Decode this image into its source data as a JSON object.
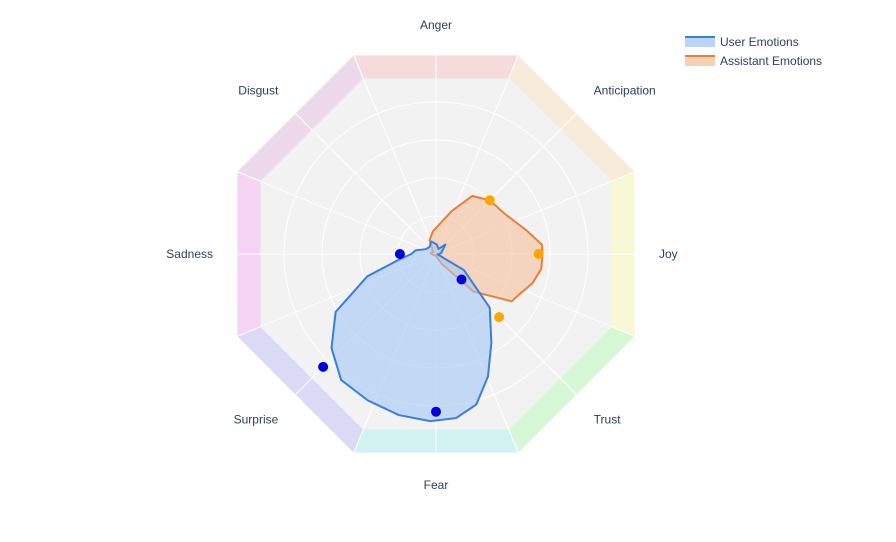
{
  "chart_data": {
    "type": "radar",
    "title": "",
    "axes": [
      "Joy",
      "Trust",
      "Fear",
      "Surprise",
      "Sadness",
      "Disgust",
      "Anger",
      "Anticipation"
    ],
    "axis_colors": [
      "#f5f5c8",
      "#c8f5c8",
      "#c3eeee",
      "#cfcdf2",
      "#f3c6f3",
      "#e6cce6",
      "#f3cfd2",
      "#f4e4cc"
    ],
    "radial_range": [
      0,
      1
    ],
    "radial_ticks": [
      0.2,
      0.4,
      0.6,
      0.8
    ],
    "series": [
      {
        "name": "User Emotions",
        "line_color": "#3a7fd8",
        "fill_color": "#a4c6f5",
        "marker_color": "#0000dd",
        "markers": [
          {
            "axis": "Trust",
            "value": 0.19
          },
          {
            "axis": "Fear",
            "value": 0.83
          },
          {
            "axis": "Surprise",
            "value": 0.84
          },
          {
            "axis": "Sadness",
            "value": 0.19
          }
        ],
        "outline": [
          [
            0,
            0.02
          ],
          [
            16,
            0.01
          ],
          [
            30,
            0.17
          ],
          [
            45,
            0.4
          ],
          [
            58,
            0.55
          ],
          [
            67,
            0.7
          ],
          [
            75,
            0.82
          ],
          [
            83,
            0.87
          ],
          [
            92,
            0.88
          ],
          [
            103,
            0.87
          ],
          [
            115,
            0.85
          ],
          [
            127,
            0.83
          ],
          [
            138,
            0.74
          ],
          [
            150,
            0.61
          ],
          [
            162,
            0.38
          ],
          [
            171,
            0.2
          ],
          [
            180,
            0.13
          ],
          [
            190,
            0.11
          ],
          [
            205,
            0.06
          ],
          [
            225,
            0.05
          ],
          [
            250,
            0.07
          ],
          [
            275,
            0.05
          ],
          [
            296,
            0.03
          ],
          [
            315,
            0.07
          ],
          [
            330,
            0.04
          ],
          [
            345,
            0.03
          ]
        ]
      },
      {
        "name": "Assistant Emotions",
        "line_color": "#e8803a",
        "fill_color": "#f5c09c",
        "marker_color": "#ffa500",
        "markers": [
          {
            "axis": "Joy",
            "value": 0.54
          },
          {
            "axis": "Trust",
            "value": 0.47
          },
          {
            "axis": "Anticipation",
            "value": 0.4
          }
        ],
        "outline": [
          [
            0,
            0.01
          ],
          [
            100,
            0.01
          ],
          [
            175,
            0.02
          ],
          [
            190,
            0.03
          ],
          [
            220,
            0.02
          ],
          [
            245,
            0.08
          ],
          [
            262,
            0.12
          ],
          [
            290,
            0.24
          ],
          [
            302,
            0.36
          ],
          [
            315,
            0.4
          ],
          [
            330,
            0.42
          ],
          [
            345,
            0.49
          ],
          [
            355,
            0.56
          ],
          [
            0,
            0.56
          ],
          [
            8,
            0.56
          ],
          [
            17,
            0.53
          ],
          [
            25,
            0.49
          ],
          [
            32,
            0.47
          ],
          [
            45,
            0.28
          ],
          [
            60,
            0.06
          ],
          [
            90,
            0.01
          ]
        ]
      }
    ],
    "legend": {
      "placement": "top-right"
    }
  }
}
